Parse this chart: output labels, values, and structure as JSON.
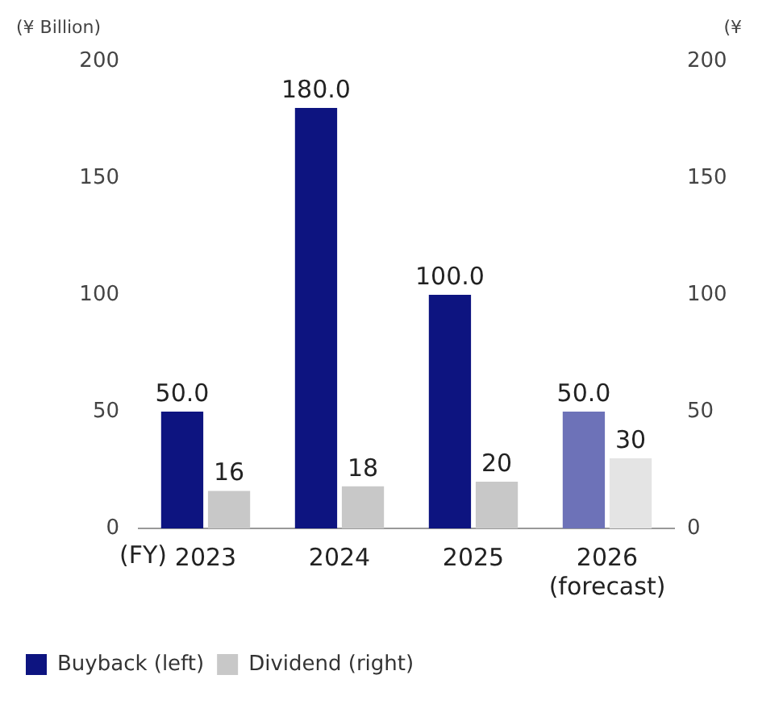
{
  "chart_data": {
    "type": "bar",
    "categories": [
      "2023",
      "2024",
      "2025",
      "2026\n(forecast)"
    ],
    "xlabel": "(FY)",
    "ylabel": "(¥ Billion)",
    "y2label": "(¥",
    "ylim": [
      0,
      200
    ],
    "yticks": [
      0,
      50,
      100,
      150,
      200
    ],
    "y2lim": [
      0,
      200
    ],
    "y2ticks": [
      0,
      50,
      100,
      150,
      200
    ],
    "grid": false,
    "legend": "bottom left",
    "series": [
      {
        "name": "Buyback (left)",
        "color": "#0d1480",
        "colors": [
          "#0d1480",
          "#0d1480",
          "#0d1480",
          "#6d72b8"
        ],
        "values": [
          50,
          180,
          100,
          50
        ],
        "value_labels": [
          "50.0",
          "180.0",
          "100.0",
          "50.0"
        ]
      },
      {
        "name": "Dividend (right)",
        "color": "#c8c8c8",
        "colors": [
          "#c8c8c8",
          "#c8c8c8",
          "#c8c8c8",
          "#e4e4e4"
        ],
        "axis": "y2",
        "values": [
          16,
          18,
          20,
          30
        ],
        "value_labels": [
          "16",
          "18",
          "20",
          "30"
        ]
      }
    ]
  }
}
